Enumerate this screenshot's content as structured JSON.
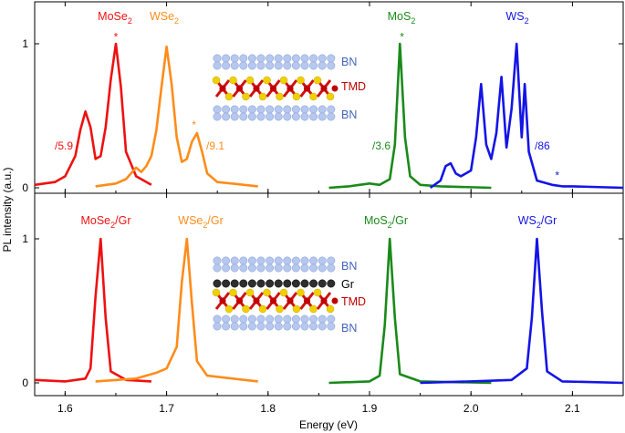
{
  "chart_data": {
    "type": "line",
    "xlabel": "Energy (eV)",
    "ylabel": "PL intensity (a.u.)",
    "xlim": [
      1.57,
      2.15
    ],
    "x_ticks": [
      "1.6",
      "1.7",
      "1.8",
      "1.9",
      "2.0",
      "2.1"
    ],
    "panels": [
      {
        "id": "top",
        "ylim": [
          0,
          1.2
        ],
        "y_ticks": [
          "0",
          "1"
        ],
        "inset_labels": [
          "BN",
          "TMD",
          "BN"
        ],
        "series": [
          {
            "name": "MoSe2",
            "label_main": "MoSe",
            "label_sub": "2",
            "color": "#ee1111",
            "scale_label": "/5.9",
            "x": [
              1.57,
              1.59,
              1.6,
              1.61,
              1.615,
              1.62,
              1.625,
              1.63,
              1.635,
              1.64,
              1.645,
              1.65,
              1.655,
              1.66,
              1.67,
              1.685
            ],
            "y": [
              0.02,
              0.04,
              0.08,
              0.22,
              0.4,
              0.53,
              0.42,
              0.2,
              0.22,
              0.42,
              0.75,
              1.0,
              0.7,
              0.25,
              0.08,
              0.02
            ],
            "peak_marker": {
              "x": 1.65,
              "y": 1.04
            }
          },
          {
            "name": "WSe2",
            "label_main": "WSe",
            "label_sub": "2",
            "color": "#ff8c1a",
            "scale_label": "/9.1",
            "x": [
              1.63,
              1.65,
              1.66,
              1.665,
              1.67,
              1.675,
              1.68,
              1.685,
              1.69,
              1.695,
              1.7,
              1.705,
              1.71,
              1.715,
              1.72,
              1.725,
              1.73,
              1.735,
              1.74,
              1.75,
              1.79
            ],
            "y": [
              0.01,
              0.03,
              0.06,
              0.1,
              0.14,
              0.11,
              0.15,
              0.22,
              0.4,
              0.7,
              0.98,
              0.72,
              0.35,
              0.18,
              0.2,
              0.32,
              0.38,
              0.25,
              0.1,
              0.04,
              0.01
            ],
            "peak_marker": {
              "x": 1.727,
              "y": 0.43
            }
          },
          {
            "name": "MoS2",
            "label_main": "MoS",
            "label_sub": "2",
            "color": "#1a8a1a",
            "scale_label": "/3.6",
            "x": [
              1.86,
              1.88,
              1.89,
              1.9,
              1.91,
              1.92,
              1.925,
              1.93,
              1.935,
              1.94,
              1.95,
              1.97,
              2.02
            ],
            "y": [
              0.0,
              0.01,
              0.02,
              0.03,
              0.02,
              0.06,
              0.3,
              1.0,
              0.35,
              0.08,
              0.02,
              0.01,
              0.0
            ],
            "peak_marker": {
              "x": 1.932,
              "y": 1.04
            }
          },
          {
            "name": "WS2",
            "label_main": "WS",
            "label_sub": "2",
            "color": "#1414e6",
            "scale_label": "/86",
            "x": [
              1.96,
              1.97,
              1.975,
              1.98,
              1.985,
              1.99,
              2.0,
              2.005,
              2.01,
              2.015,
              2.02,
              2.025,
              2.03,
              2.035,
              2.04,
              2.045,
              2.05,
              2.053,
              2.057,
              2.065,
              2.08,
              2.09,
              2.1,
              2.15
            ],
            "y": [
              0.0,
              0.05,
              0.15,
              0.17,
              0.1,
              0.08,
              0.12,
              0.35,
              0.72,
              0.3,
              0.2,
              0.38,
              0.77,
              0.28,
              0.55,
              1.0,
              0.35,
              0.72,
              0.25,
              0.05,
              0.02,
              0.01,
              0.01,
              0.0
            ],
            "peak_marker": {
              "x": 2.085,
              "y": 0.08
            }
          }
        ]
      },
      {
        "id": "bottom",
        "ylim": [
          0,
          1.2
        ],
        "y_ticks": [
          "0",
          "1"
        ],
        "inset_labels": [
          "BN",
          "Gr",
          "TMD",
          "BN"
        ],
        "series": [
          {
            "name": "MoSe2/Gr",
            "label_main": "MoSe",
            "label_sub": "2",
            "label_tail": "/Gr",
            "color": "#ee1111",
            "x": [
              1.57,
              1.6,
              1.62,
              1.625,
              1.63,
              1.635,
              1.64,
              1.645,
              1.66,
              1.685
            ],
            "y": [
              0.02,
              0.01,
              0.03,
              0.1,
              0.6,
              1.0,
              0.45,
              0.08,
              0.02,
              0.01
            ]
          },
          {
            "name": "WSe2/Gr",
            "label_main": "WSe",
            "label_sub": "2",
            "label_tail": "/Gr",
            "color": "#ff8c1a",
            "x": [
              1.63,
              1.67,
              1.69,
              1.7,
              1.71,
              1.715,
              1.72,
              1.725,
              1.73,
              1.74,
              1.79
            ],
            "y": [
              0.01,
              0.03,
              0.07,
              0.1,
              0.25,
              0.7,
              1.0,
              0.55,
              0.15,
              0.05,
              0.01
            ]
          },
          {
            "name": "MoS2/Gr",
            "label_main": "MoS",
            "label_sub": "2",
            "label_tail": "/Gr",
            "color": "#1a8a1a",
            "x": [
              1.86,
              1.9,
              1.91,
              1.915,
              1.92,
              1.925,
              1.93,
              1.95,
              2.02
            ],
            "y": [
              0.0,
              0.01,
              0.05,
              0.4,
              1.0,
              0.45,
              0.06,
              0.01,
              0.0
            ]
          },
          {
            "name": "WS2/Gr",
            "label_main": "WS",
            "label_sub": "2",
            "label_tail": "/Gr",
            "color": "#1414e6",
            "x": [
              1.95,
              2.0,
              2.04,
              2.055,
              2.06,
              2.065,
              2.07,
              2.075,
              2.09,
              2.15
            ],
            "y": [
              0.0,
              0.01,
              0.02,
              0.1,
              0.45,
              1.0,
              0.5,
              0.08,
              0.01,
              0.0
            ]
          }
        ]
      }
    ]
  }
}
